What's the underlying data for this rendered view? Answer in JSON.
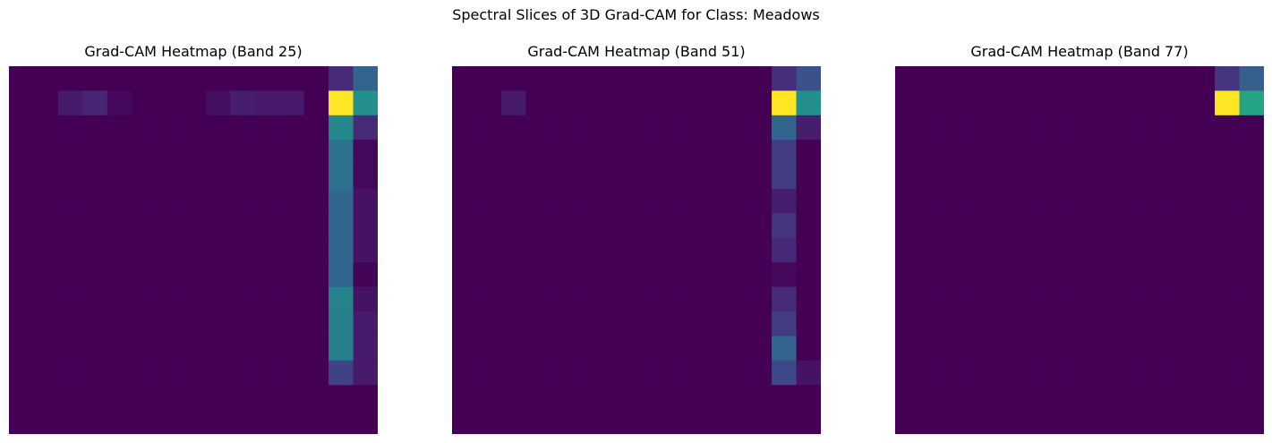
{
  "figure": {
    "title": "Spectral Slices of 3D Grad-CAM for Class: Meadows"
  },
  "colormap": {
    "name": "viridis",
    "stops": [
      "#440154",
      "#482878",
      "#3e4989",
      "#31688e",
      "#26828e",
      "#1f9e89",
      "#35b779",
      "#6ece58",
      "#b5de2b",
      "#fde725"
    ]
  },
  "chart_data": [
    {
      "type": "heatmap",
      "title": "Grad-CAM Heatmap (Band 25)",
      "grid": false,
      "axes": "off",
      "vlim": [
        0,
        1
      ],
      "values": [
        [
          0,
          0,
          0,
          0,
          0,
          0,
          0,
          0,
          0,
          0,
          0,
          0,
          0,
          0.12,
          0.32
        ],
        [
          0,
          0,
          0.07,
          0.1,
          0.02,
          0,
          0,
          0,
          0.04,
          0.08,
          0.07,
          0.07,
          0,
          1.0,
          0.5
        ],
        [
          0,
          0,
          0,
          0,
          0,
          0,
          0,
          0,
          0,
          0,
          0,
          0,
          0,
          0.47,
          0.12
        ],
        [
          0,
          0,
          0,
          0,
          0,
          0,
          0,
          0,
          0,
          0,
          0,
          0,
          0,
          0.37,
          0.02
        ],
        [
          0,
          0,
          0,
          0,
          0,
          0,
          0,
          0,
          0,
          0,
          0,
          0,
          0,
          0.37,
          0.02
        ],
        [
          0,
          0,
          0,
          0,
          0,
          0,
          0,
          0,
          0,
          0,
          0,
          0,
          0,
          0.33,
          0.05
        ],
        [
          0,
          0,
          0,
          0,
          0,
          0,
          0,
          0,
          0,
          0,
          0,
          0,
          0,
          0.33,
          0.05
        ],
        [
          0,
          0,
          0,
          0,
          0,
          0,
          0,
          0,
          0,
          0,
          0,
          0,
          0,
          0.33,
          0.05
        ],
        [
          0,
          0,
          0,
          0,
          0,
          0,
          0,
          0,
          0,
          0,
          0,
          0,
          0,
          0.33,
          0.01
        ],
        [
          0,
          0,
          0,
          0,
          0,
          0,
          0,
          0,
          0,
          0,
          0,
          0,
          0,
          0.45,
          0.05
        ],
        [
          0,
          0,
          0,
          0,
          0,
          0,
          0,
          0,
          0,
          0,
          0,
          0,
          0,
          0.43,
          0.07
        ],
        [
          0,
          0,
          0,
          0,
          0,
          0,
          0,
          0,
          0,
          0,
          0,
          0,
          0,
          0.43,
          0.07
        ],
        [
          0,
          0,
          0,
          0,
          0,
          0,
          0,
          0,
          0,
          0,
          0,
          0,
          0,
          0.2,
          0.07
        ],
        [
          0,
          0,
          0,
          0,
          0,
          0,
          0,
          0,
          0,
          0,
          0,
          0,
          0,
          0,
          0
        ],
        [
          0,
          0,
          0,
          0,
          0,
          0,
          0,
          0,
          0,
          0,
          0,
          0,
          0,
          0,
          0
        ]
      ]
    },
    {
      "type": "heatmap",
      "title": "Grad-CAM Heatmap (Band 51)",
      "grid": false,
      "axes": "off",
      "vlim": [
        0,
        1
      ],
      "values": [
        [
          0,
          0,
          0,
          0,
          0,
          0,
          0,
          0,
          0,
          0,
          0,
          0,
          0,
          0.13,
          0.25
        ],
        [
          0,
          0,
          0.07,
          0,
          0,
          0,
          0,
          0,
          0,
          0,
          0,
          0,
          0,
          1.0,
          0.5
        ],
        [
          0,
          0,
          0,
          0,
          0,
          0,
          0,
          0,
          0,
          0,
          0,
          0,
          0,
          0.32,
          0.08
        ],
        [
          0,
          0,
          0,
          0,
          0,
          0,
          0,
          0,
          0,
          0,
          0,
          0,
          0,
          0.18,
          0
        ],
        [
          0,
          0,
          0,
          0,
          0,
          0,
          0,
          0,
          0,
          0,
          0,
          0,
          0,
          0.18,
          0
        ],
        [
          0,
          0,
          0,
          0,
          0,
          0,
          0,
          0,
          0,
          0,
          0,
          0,
          0,
          0.08,
          0
        ],
        [
          0,
          0,
          0,
          0,
          0,
          0,
          0,
          0,
          0,
          0,
          0,
          0,
          0,
          0.15,
          0
        ],
        [
          0,
          0,
          0,
          0,
          0,
          0,
          0,
          0,
          0,
          0,
          0,
          0,
          0,
          0.11,
          0
        ],
        [
          0,
          0,
          0,
          0,
          0,
          0,
          0,
          0,
          0,
          0,
          0,
          0,
          0,
          0.02,
          0
        ],
        [
          0,
          0,
          0,
          0,
          0,
          0,
          0,
          0,
          0,
          0,
          0,
          0,
          0,
          0.12,
          0
        ],
        [
          0,
          0,
          0,
          0,
          0,
          0,
          0,
          0,
          0,
          0,
          0,
          0,
          0,
          0.18,
          0
        ],
        [
          0,
          0,
          0,
          0,
          0,
          0,
          0,
          0,
          0,
          0,
          0,
          0,
          0,
          0.32,
          0
        ],
        [
          0,
          0,
          0,
          0,
          0,
          0,
          0,
          0,
          0,
          0,
          0,
          0,
          0,
          0.22,
          0.05
        ],
        [
          0,
          0,
          0,
          0,
          0,
          0,
          0,
          0,
          0,
          0,
          0,
          0,
          0,
          0,
          0
        ],
        [
          0,
          0,
          0,
          0,
          0,
          0,
          0,
          0,
          0,
          0,
          0,
          0,
          0,
          0,
          0
        ]
      ]
    },
    {
      "type": "heatmap",
      "title": "Grad-CAM Heatmap (Band 77)",
      "grid": false,
      "axes": "off",
      "vlim": [
        0,
        1
      ],
      "values": [
        [
          0,
          0,
          0,
          0,
          0,
          0,
          0,
          0,
          0,
          0,
          0,
          0,
          0,
          0.15,
          0.3
        ],
        [
          0,
          0,
          0,
          0,
          0,
          0,
          0,
          0,
          0,
          0,
          0,
          0,
          0,
          1.0,
          0.58
        ],
        [
          0,
          0,
          0,
          0,
          0,
          0,
          0,
          0,
          0,
          0,
          0,
          0,
          0,
          0,
          0
        ],
        [
          0,
          0,
          0,
          0,
          0,
          0,
          0,
          0,
          0,
          0,
          0,
          0,
          0,
          0,
          0
        ],
        [
          0,
          0,
          0,
          0,
          0,
          0,
          0,
          0,
          0,
          0,
          0,
          0,
          0,
          0,
          0
        ],
        [
          0,
          0,
          0,
          0,
          0,
          0,
          0,
          0,
          0,
          0,
          0,
          0,
          0,
          0,
          0
        ],
        [
          0,
          0,
          0,
          0,
          0,
          0,
          0,
          0,
          0,
          0,
          0,
          0,
          0,
          0,
          0
        ],
        [
          0,
          0,
          0,
          0,
          0,
          0,
          0,
          0,
          0,
          0,
          0,
          0,
          0,
          0,
          0
        ],
        [
          0,
          0,
          0,
          0,
          0,
          0,
          0,
          0,
          0,
          0,
          0,
          0,
          0,
          0,
          0
        ],
        [
          0,
          0,
          0,
          0,
          0,
          0,
          0,
          0,
          0,
          0,
          0,
          0,
          0,
          0,
          0
        ],
        [
          0,
          0,
          0,
          0,
          0,
          0,
          0,
          0,
          0,
          0,
          0,
          0,
          0,
          0,
          0
        ],
        [
          0,
          0,
          0,
          0,
          0,
          0,
          0,
          0,
          0,
          0,
          0,
          0,
          0,
          0,
          0
        ],
        [
          0,
          0,
          0,
          0,
          0,
          0,
          0,
          0,
          0,
          0,
          0,
          0,
          0,
          0,
          0
        ],
        [
          0,
          0,
          0,
          0,
          0,
          0,
          0,
          0,
          0,
          0,
          0,
          0,
          0,
          0,
          0
        ],
        [
          0,
          0,
          0,
          0,
          0,
          0,
          0,
          0,
          0,
          0,
          0,
          0,
          0,
          0,
          0
        ]
      ]
    }
  ]
}
